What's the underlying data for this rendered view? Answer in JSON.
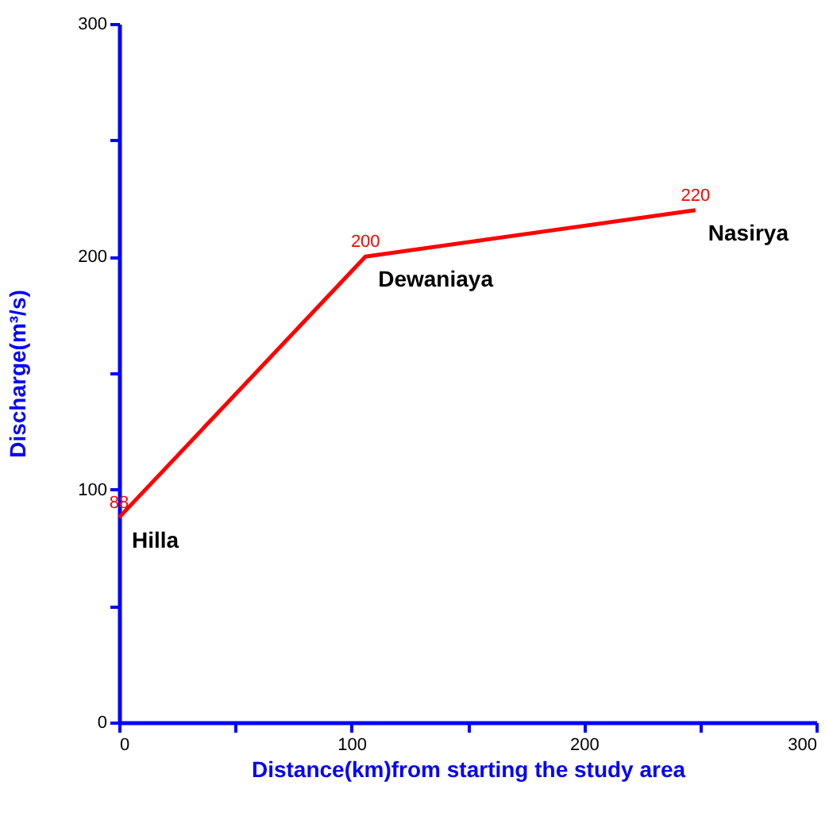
{
  "chart_data": {
    "type": "line",
    "xlabel": "Distance(km)from starting the study area",
    "ylabel": "Discharge(m³/s)",
    "x": [
      0,
      106,
      248
    ],
    "series": [
      {
        "color": "#ff0000",
        "values": [
          88,
          200,
          220
        ]
      }
    ],
    "data_labels": true,
    "xlim": [
      0,
      300
    ],
    "xticks": [
      0,
      {
        "value": 50,
        "label": null
      },
      100,
      {
        "value": 150,
        "label": null
      },
      200,
      {
        "value": 250,
        "label": null
      },
      300
    ],
    "ylim": [
      0,
      300
    ],
    "yticks": [
      0,
      {
        "value": 50,
        "label": null
      },
      100,
      {
        "value": 150,
        "label": null
      },
      200,
      {
        "value": 250,
        "label": null
      },
      300
    ],
    "grid": false,
    "annotations": [
      {
        "text": "Hilla",
        "x": 0,
        "y": 88
      },
      {
        "text": "Dewaniaya",
        "x": 106,
        "y": 200
      },
      {
        "text": "Nasirya",
        "x": 248,
        "y": 220
      }
    ]
  }
}
